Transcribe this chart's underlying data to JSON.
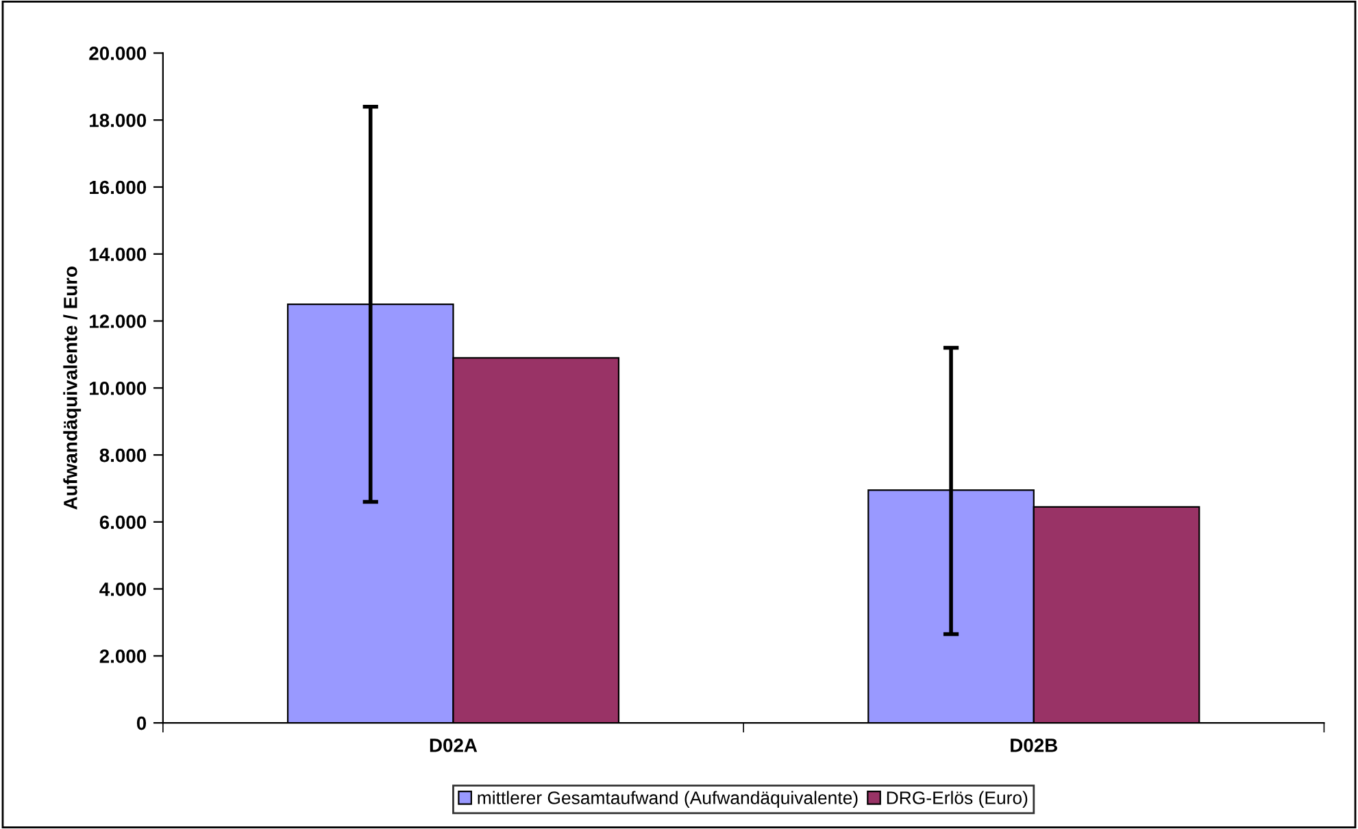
{
  "chart_data": {
    "type": "bar",
    "ylabel": "Aufwandäquivalente / Euro",
    "categories": [
      "D02A",
      "D02B"
    ],
    "series": [
      {
        "name": "mittlerer Gesamtaufwand (Aufwandäquivalente)",
        "color": "#9999ff",
        "values": [
          12500,
          6950
        ],
        "errors": [
          [
            6600,
            18400
          ],
          [
            2650,
            11200
          ]
        ]
      },
      {
        "name": "DRG-Erlös (Euro)",
        "color": "#993366",
        "values": [
          10900,
          6450
        ]
      }
    ],
    "ylim": [
      0,
      20000
    ],
    "yticks": [
      0,
      {
        "value": 2000,
        "label": "2.000"
      },
      {
        "value": 4000,
        "label": "4.000"
      },
      {
        "value": 6000,
        "label": "6.000"
      },
      {
        "value": 8000,
        "label": "8.000"
      },
      {
        "value": 10000,
        "label": "10.000"
      },
      {
        "value": 12000,
        "label": "12.000"
      },
      {
        "value": 14000,
        "label": "14.000"
      },
      {
        "value": 16000,
        "label": "16.000"
      },
      {
        "value": 18000,
        "label": "18.000"
      },
      {
        "value": 20000,
        "label": "20.000"
      }
    ],
    "grid": false,
    "legend": "bottom"
  }
}
